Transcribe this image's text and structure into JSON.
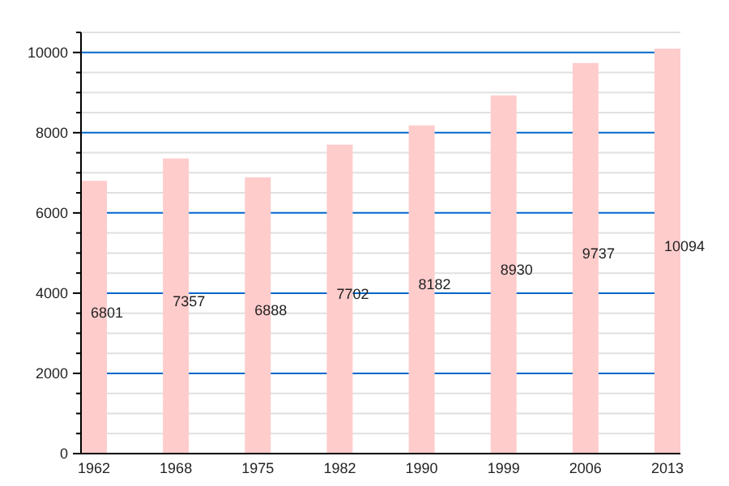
{
  "chart_data": {
    "type": "bar",
    "categories": [
      "1962",
      "1968",
      "1975",
      "1982",
      "1990",
      "1999",
      "2006",
      "2013"
    ],
    "values": [
      6801,
      7357,
      6888,
      7702,
      8182,
      8930,
      9737,
      10094
    ],
    "color": "#ffcccc",
    "data_labels": true,
    "grid": true,
    "ylim": [
      0,
      10500
    ],
    "yticks": [
      0,
      {
        "value": 500,
        "label": null
      },
      {
        "value": 1000,
        "label": null
      },
      {
        "value": 1500,
        "label": null
      },
      2000,
      {
        "value": 2500,
        "label": null
      },
      {
        "value": 3000,
        "label": null
      },
      {
        "value": 3500,
        "label": null
      },
      4000,
      {
        "value": 4500,
        "label": null
      },
      {
        "value": 5000,
        "label": null
      },
      {
        "value": 5500,
        "label": null
      },
      6000,
      {
        "value": 6500,
        "label": null
      },
      {
        "value": 7000,
        "label": null
      },
      {
        "value": 7500,
        "label": null
      },
      8000,
      {
        "value": 8500,
        "label": null
      },
      {
        "value": 9000,
        "label": null
      },
      {
        "value": 9500,
        "label": null
      },
      10000,
      {
        "value": 10500,
        "label": null
      }
    ]
  }
}
